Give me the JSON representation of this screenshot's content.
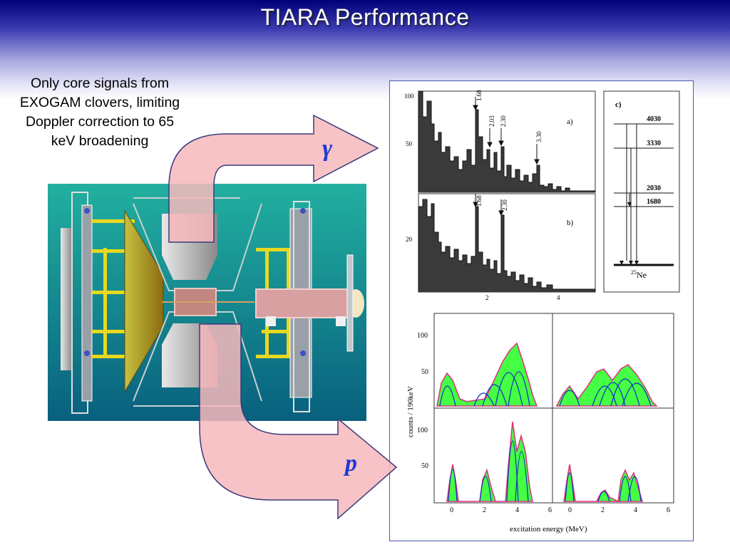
{
  "slide": {
    "title": "TIARA Performance",
    "caption": "Only core signals from EXOGAM clovers, limiting Doppler correction to 65 keV broadening",
    "arrow_labels": {
      "gamma": "γ",
      "proton": "p"
    }
  },
  "colors": {
    "title_bar": "#00007a",
    "arrow_fill": "#f7b8bc",
    "arrow_stroke": "#3b3a7c",
    "panel_border": "#4a5ab0",
    "label_blue": "#1a3bd6",
    "fit_fill": "#44ff44",
    "fit_curve": "#1428c8",
    "detector_bg_top": "#22b0a0",
    "detector_bg_bottom": "#08607e"
  },
  "gamma_spectra": {
    "panel_a": {
      "label": "a)",
      "ytick_labels": [
        "100",
        "50"
      ],
      "peaks": [
        "1.68",
        "2.03",
        "2.30",
        "3.30"
      ]
    },
    "panel_b": {
      "label": "b)",
      "ytick_labels": [
        "20"
      ],
      "peaks": [
        "1.68",
        "2.30"
      ],
      "xtick_labels": [
        "2",
        "4"
      ]
    }
  },
  "level_scheme": {
    "label": "c)",
    "levels": [
      "4030",
      "3330",
      "2030",
      "1680"
    ],
    "nucleus_mass": "25",
    "nucleus_symbol": "Ne"
  },
  "proton_spectra": {
    "ylabel": "counts / 190keV",
    "xlabel": "excitation energy (MeV)",
    "ytick_labels": [
      "100",
      "50"
    ],
    "xtick_labels": [
      "0",
      "2",
      "4",
      "6"
    ]
  }
}
